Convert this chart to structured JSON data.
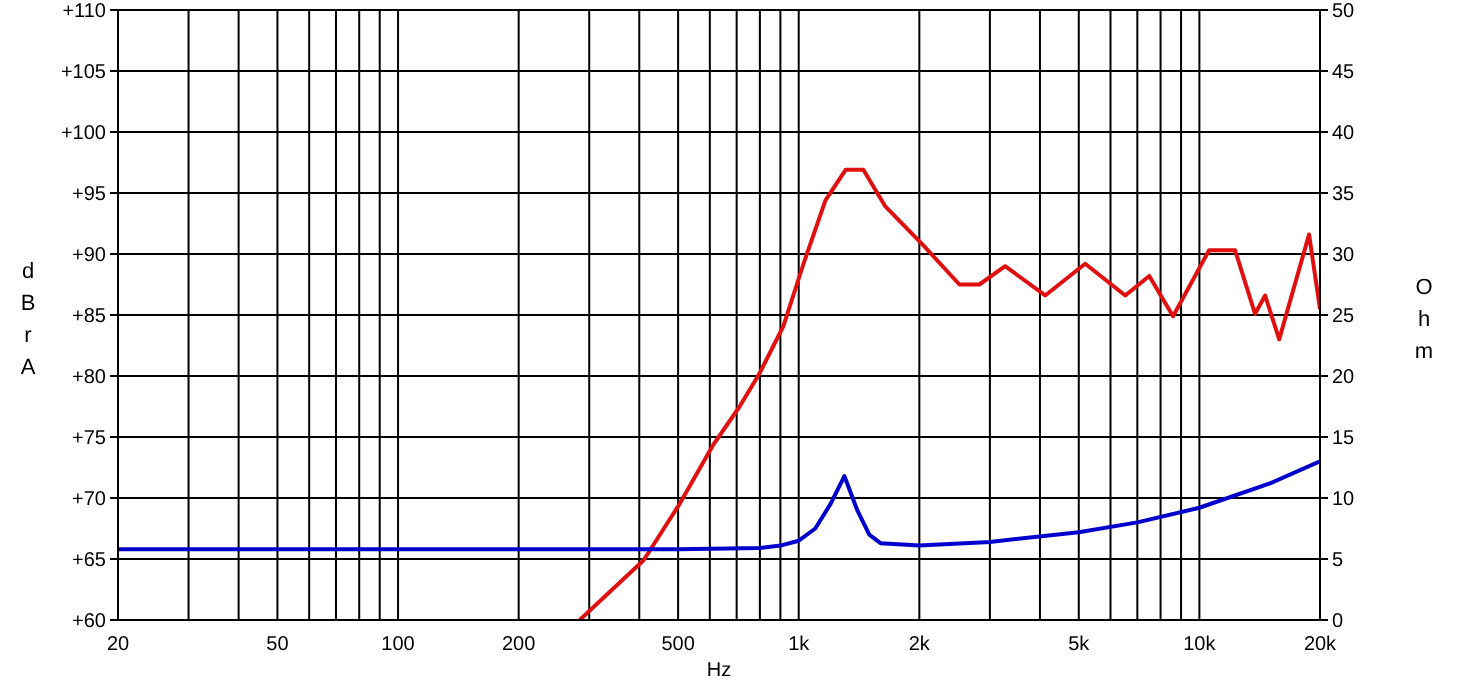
{
  "chart_data": {
    "type": "line",
    "xlabel": "Hz",
    "ylabel": "dBrA",
    "y2label": "Ohm",
    "log": "x",
    "grid": true,
    "legend": false,
    "marker": "none",
    "line_style": "solid",
    "xlim": [
      20,
      20000
    ],
    "xticks": [
      20,
      {
        "value": 30,
        "label": null
      },
      {
        "value": 40,
        "label": null
      },
      50,
      {
        "value": 60,
        "label": null
      },
      {
        "value": 70,
        "label": null
      },
      {
        "value": 80,
        "label": null
      },
      {
        "value": 90,
        "label": null
      },
      100,
      200,
      {
        "value": 300,
        "label": null
      },
      {
        "value": 400,
        "label": null
      },
      500,
      {
        "value": 600,
        "label": null
      },
      {
        "value": 700,
        "label": null
      },
      {
        "value": 800,
        "label": null
      },
      {
        "value": 900,
        "label": null
      },
      {
        "value": 1000,
        "label": "1k"
      },
      {
        "value": 2000,
        "label": "2k"
      },
      {
        "value": 3000,
        "label": null
      },
      {
        "value": 4000,
        "label": null
      },
      {
        "value": 5000,
        "label": "5k"
      },
      {
        "value": 6000,
        "label": null
      },
      {
        "value": 7000,
        "label": null
      },
      {
        "value": 8000,
        "label": null
      },
      {
        "value": 9000,
        "label": null
      },
      {
        "value": 10000,
        "label": "10k"
      },
      {
        "value": 20000,
        "label": "20k"
      }
    ],
    "ylim": [
      60,
      110
    ],
    "yticks": [
      {
        "value": 60,
        "label": "+60"
      },
      {
        "value": 65,
        "label": "+65"
      },
      {
        "value": 70,
        "label": "+70"
      },
      {
        "value": 75,
        "label": "+75"
      },
      {
        "value": 80,
        "label": "+80"
      },
      {
        "value": 85,
        "label": "+85"
      },
      {
        "value": 90,
        "label": "+90"
      },
      {
        "value": 95,
        "label": "+95"
      },
      {
        "value": 100,
        "label": "+100"
      },
      {
        "value": 105,
        "label": "+105"
      },
      {
        "value": 110,
        "label": "+110"
      }
    ],
    "y2lim": [
      0,
      50
    ],
    "y2ticks": [
      0,
      5,
      10,
      15,
      20,
      25,
      30,
      35,
      40,
      45,
      50
    ],
    "series": [
      {
        "color": "#e01010",
        "x": [
          284,
          410,
          504,
          613,
          712,
          798,
          916,
          1028,
          1166,
          1309,
          1450,
          1645,
          2047,
          2518,
          2825,
          3275,
          4122,
          5188,
          6532,
          7497,
          8596,
          10570,
          12280,
          13770,
          14590,
          15820,
          18780,
          20000
        ],
        "values": [
          60,
          64.9,
          69.5,
          74.4,
          77.5,
          80.2,
          84.1,
          89.2,
          94.4,
          96.9,
          96.9,
          93.9,
          90.7,
          87.5,
          87.5,
          89.0,
          86.6,
          89.2,
          86.6,
          88.2,
          84.9,
          90.3,
          90.3,
          85.1,
          86.6,
          83.0,
          91.6,
          85.5
        ]
      },
      {
        "color": "#0000cc",
        "axis": "y2",
        "x": [
          20,
          100,
          500,
          800,
          900,
          1000,
          1100,
          1200,
          1300,
          1400,
          1500,
          1600,
          2000,
          3000,
          5000,
          7000,
          10000,
          15000,
          20000
        ],
        "values": [
          5.8,
          5.8,
          5.8,
          5.9,
          6.1,
          6.5,
          7.5,
          9.5,
          11.8,
          9.0,
          7.0,
          6.3,
          6.1,
          6.4,
          7.2,
          8.0,
          9.2,
          11.2,
          13.0
        ]
      }
    ]
  }
}
